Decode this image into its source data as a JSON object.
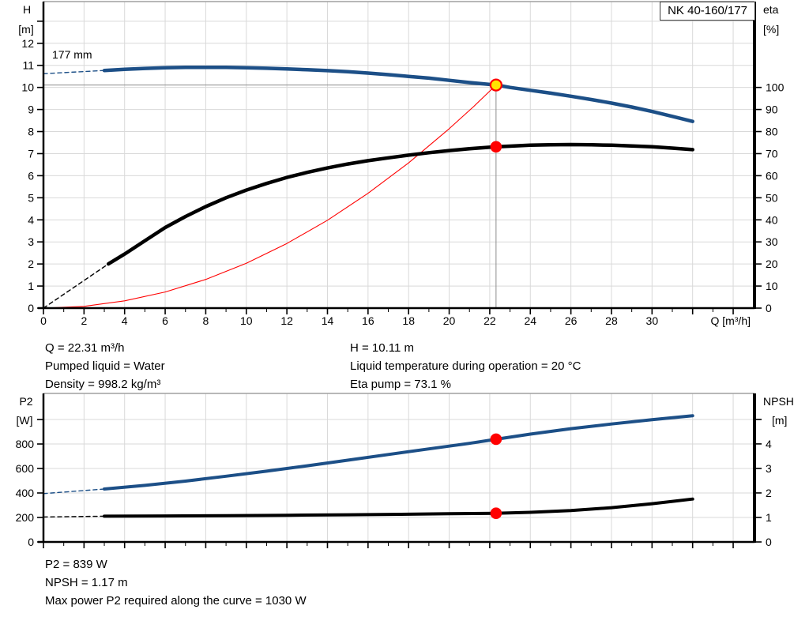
{
  "pump_model": "NK 40-160/177",
  "colors": {
    "curve_blue": "#1c4f87",
    "curve_black": "#000000",
    "curve_red": "#ff0000",
    "grid": "#d9d9d9",
    "frame_gray": "#a0a0a0",
    "axis_black": "#000000",
    "helper_gray": "#8c8c8c",
    "dot_red": "#ff0000",
    "dot_yellow": "#ffe400"
  },
  "top_chart": {
    "title": "NK 40-160/177",
    "impeller_label": "177 mm",
    "ylabel_left_line1": "H",
    "ylabel_left_line2": "[m]",
    "ylabel_right_line1": "eta",
    "ylabel_right_line2": "[%]",
    "xlabel": "Q [m³/h]"
  },
  "bottom_chart": {
    "ylabel_left_line1": "P2",
    "ylabel_left_line2": "[W]",
    "ylabel_right_line1": "NPSH",
    "ylabel_right_line2": "[m]"
  },
  "info_top": {
    "left": [
      "Q = 22.31 m³/h",
      "Pumped liquid = Water",
      "Density = 998.2 kg/m³"
    ],
    "right": [
      "H = 10.11 m",
      "Liquid temperature during operation = 20 °C",
      "Eta pump = 73.1 %"
    ]
  },
  "info_bottom": [
    "P2 = 839 W",
    "NPSH = 1.17 m",
    "Max power P2 required along the curve = 1030 W"
  ],
  "chart_data": [
    {
      "type": "line",
      "title": "NK 40-160/177",
      "xlabel": "Q [m³/h]",
      "ylabel_left": "H [m]",
      "ylabel_right": "eta [%]",
      "xlim": [
        0,
        35.05
      ],
      "ylim_left": [
        0,
        13.89
      ],
      "ylim_right": [
        0,
        138.9
      ],
      "grid": true,
      "legend": "none",
      "x_tick_labels": [
        0,
        2,
        4,
        6,
        8,
        10,
        12,
        14,
        16,
        18,
        20,
        22,
        24,
        26,
        28,
        30
      ],
      "x_tick_max": 34,
      "y_tick_labels_left": [
        0,
        1,
        2,
        3,
        4,
        5,
        6,
        7,
        8,
        9,
        10,
        11,
        12
      ],
      "y_extra_ticks_left": [
        13
      ],
      "y_tick_labels_right": [
        0,
        10,
        20,
        30,
        40,
        50,
        60,
        70,
        80,
        90,
        100
      ],
      "y_extra_ticks_right": [],
      "series": [
        {
          "name": "head-curve-lead-dashed",
          "axis": "left",
          "color": "blue",
          "width": 1.4,
          "dash": "5,4",
          "points": [
            [
              0,
              10.62
            ],
            [
              3,
              10.77
            ]
          ]
        },
        {
          "name": "eta-curve-lead-dashed",
          "axis": "right",
          "color": "black",
          "width": 1.4,
          "dash": "5,4",
          "points": [
            [
              0,
              0
            ],
            [
              3.2,
              20
            ]
          ]
        },
        {
          "name": "system-curve",
          "axis": "left",
          "color": "red",
          "width": 1.1,
          "dash": "",
          "points": [
            [
              0,
              0
            ],
            [
              2,
              0.08
            ],
            [
              4,
              0.33
            ],
            [
              6,
              0.73
            ],
            [
              8,
              1.3
            ],
            [
              10,
              2.03
            ],
            [
              12,
              2.93
            ],
            [
              14,
              3.98
            ],
            [
              16,
              5.2
            ],
            [
              18,
              6.58
            ],
            [
              20,
              8.13
            ],
            [
              21.2,
              9.13
            ],
            [
              22.31,
              10.11
            ]
          ]
        },
        {
          "name": "head-curve",
          "axis": "left",
          "color": "blue",
          "width": 4.5,
          "dash": "",
          "points": [
            [
              3,
              10.77
            ],
            [
              4,
              10.82
            ],
            [
              5,
              10.86
            ],
            [
              6,
              10.89
            ],
            [
              7,
              10.91
            ],
            [
              8,
              10.91
            ],
            [
              9,
              10.91
            ],
            [
              10,
              10.89
            ],
            [
              11,
              10.87
            ],
            [
              12,
              10.84
            ],
            [
              13,
              10.8
            ],
            [
              14,
              10.76
            ],
            [
              15,
              10.71
            ],
            [
              16,
              10.65
            ],
            [
              17,
              10.58
            ],
            [
              18,
              10.5
            ],
            [
              19,
              10.42
            ],
            [
              20,
              10.32
            ],
            [
              21,
              10.22
            ],
            [
              22.31,
              10.11
            ],
            [
              23,
              10.0
            ],
            [
              24,
              9.87
            ],
            [
              25,
              9.74
            ],
            [
              26,
              9.6
            ],
            [
              27,
              9.45
            ],
            [
              28,
              9.29
            ],
            [
              29,
              9.11
            ],
            [
              30,
              8.91
            ],
            [
              31,
              8.69
            ],
            [
              32,
              8.46
            ]
          ]
        },
        {
          "name": "eta-curve",
          "axis": "right",
          "color": "black",
          "width": 4.5,
          "dash": "",
          "points": [
            [
              3.2,
              20
            ],
            [
              4,
              24.5
            ],
            [
              5,
              30.5
            ],
            [
              6,
              36.5
            ],
            [
              7,
              41.5
            ],
            [
              8,
              46
            ],
            [
              9,
              50
            ],
            [
              10,
              53.5
            ],
            [
              11,
              56.5
            ],
            [
              12,
              59.2
            ],
            [
              13,
              61.5
            ],
            [
              14,
              63.5
            ],
            [
              15,
              65.3
            ],
            [
              16,
              66.8
            ],
            [
              17,
              68.1
            ],
            [
              18,
              69.3
            ],
            [
              19,
              70.4
            ],
            [
              20,
              71.4
            ],
            [
              21,
              72.2
            ],
            [
              22.31,
              73.1
            ],
            [
              23,
              73.4
            ],
            [
              24,
              73.8
            ],
            [
              25,
              74
            ],
            [
              26,
              74.1
            ],
            [
              27,
              74
            ],
            [
              28,
              73.8
            ],
            [
              29,
              73.5
            ],
            [
              30,
              73.1
            ],
            [
              31,
              72.5
            ],
            [
              32,
              71.8
            ]
          ]
        }
      ],
      "helper_lines": [
        {
          "name": "duty-head-horizontal",
          "axis": "left",
          "from": [
            0,
            10.11
          ],
          "to": [
            22.31,
            10.11
          ]
        },
        {
          "name": "duty-flow-vertical",
          "axis": "left",
          "from": [
            22.31,
            0
          ],
          "to": [
            22.31,
            10.11
          ]
        }
      ],
      "duty_points": [
        {
          "name": "duty-point-head",
          "x": 22.31,
          "y": 10.11,
          "axis": "left",
          "fill": "yellow",
          "stroke": "red",
          "r": 7
        },
        {
          "name": "duty-point-eta",
          "x": 22.31,
          "y": 73.1,
          "axis": "right",
          "fill": "red",
          "stroke": "red",
          "r": 6.2
        }
      ],
      "annotations": [
        {
          "text": "177 mm",
          "q": 0.45,
          "val": 11.6,
          "axis": "left"
        }
      ]
    },
    {
      "type": "line",
      "title": "",
      "xlabel": "",
      "ylabel_left": "P2 [W]",
      "ylabel_right": "NPSH [m]",
      "xlim": [
        0,
        35.05
      ],
      "ylim_left": [
        0,
        1213
      ],
      "ylim_right": [
        0,
        6.06
      ],
      "grid": true,
      "legend": "none",
      "x_tick_labels": [],
      "x_tick_max": 34,
      "y_tick_labels_left": [
        0,
        200,
        400,
        600,
        800
      ],
      "y_extra_ticks_left": [
        1000
      ],
      "y_tick_labels_right": [
        0,
        1,
        2,
        3,
        4
      ],
      "y_extra_ticks_right": [
        5
      ],
      "series": [
        {
          "name": "p2-curve-lead-dashed",
          "axis": "left",
          "color": "blue",
          "width": 1.4,
          "dash": "5,4",
          "points": [
            [
              0,
              395
            ],
            [
              3,
              432
            ]
          ]
        },
        {
          "name": "npsh-curve-lead-dashed",
          "axis": "right",
          "color": "black",
          "width": 1.4,
          "dash": "5,4",
          "points": [
            [
              0,
              1.02
            ],
            [
              3,
              1.05
            ]
          ]
        },
        {
          "name": "p2-curve",
          "axis": "left",
          "color": "blue",
          "width": 4,
          "dash": "",
          "points": [
            [
              3,
              432
            ],
            [
              5,
              462
            ],
            [
              7,
              497
            ],
            [
              9,
              537
            ],
            [
              11,
              578
            ],
            [
              13,
              622
            ],
            [
              15,
              668
            ],
            [
              17,
              714
            ],
            [
              19,
              760
            ],
            [
              21,
              805
            ],
            [
              22.31,
              839
            ],
            [
              24,
              881
            ],
            [
              26,
              925
            ],
            [
              28,
              963
            ],
            [
              30,
              999
            ],
            [
              32,
              1031
            ]
          ]
        },
        {
          "name": "npsh-curve",
          "axis": "right",
          "color": "black",
          "width": 4,
          "dash": "",
          "points": [
            [
              3,
              1.05
            ],
            [
              6,
              1.06
            ],
            [
              9,
              1.07
            ],
            [
              12,
              1.09
            ],
            [
              15,
              1.11
            ],
            [
              18,
              1.13
            ],
            [
              20,
              1.15
            ],
            [
              22.31,
              1.17
            ],
            [
              24,
              1.21
            ],
            [
              26,
              1.28
            ],
            [
              28,
              1.4
            ],
            [
              30,
              1.56
            ],
            [
              32,
              1.75
            ]
          ]
        }
      ],
      "helper_lines": [],
      "duty_points": [
        {
          "name": "duty-point-p2",
          "x": 22.31,
          "y": 839,
          "axis": "left",
          "fill": "red",
          "stroke": "red",
          "r": 6.2
        },
        {
          "name": "duty-point-npsh",
          "x": 22.31,
          "y": 1.17,
          "axis": "right",
          "fill": "red",
          "stroke": "red",
          "r": 6.2
        }
      ],
      "annotations": []
    }
  ]
}
